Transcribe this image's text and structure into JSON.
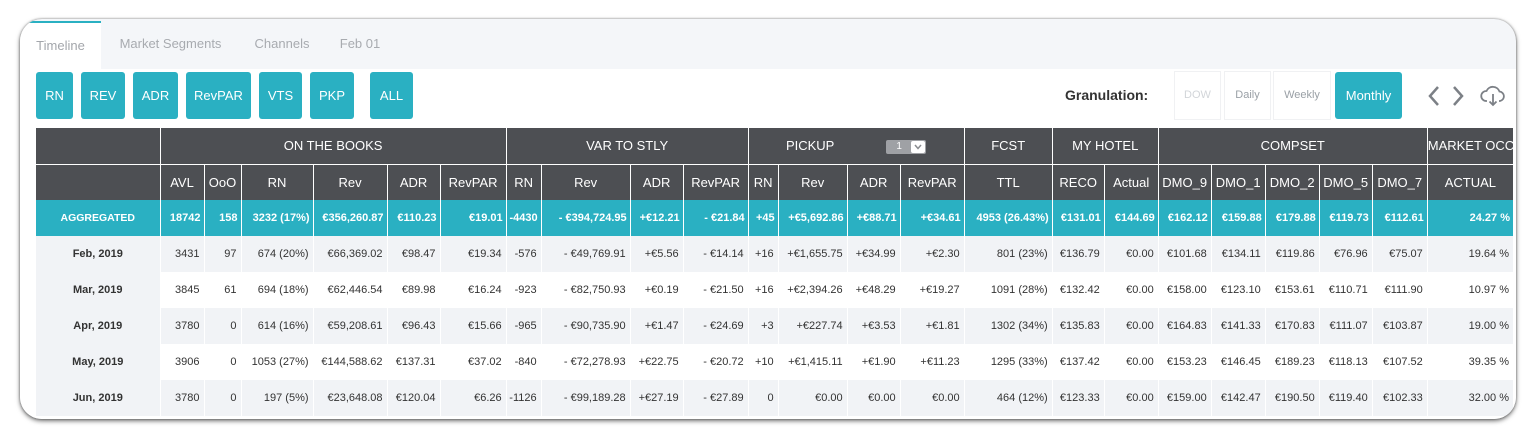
{
  "tabs": [
    {
      "label": "Timeline",
      "active": true
    },
    {
      "label": "Market Segments"
    },
    {
      "label": "Channels"
    },
    {
      "label": "Feb 01"
    }
  ],
  "metric_buttons": [
    "RN",
    "REV",
    "ADR",
    "RevPAR",
    "VTS",
    "PKP",
    "ALL"
  ],
  "granulation": {
    "label": "Granulation:",
    "options": [
      "DOW",
      "Daily",
      "Weekly",
      "Monthly"
    ],
    "selected": "Monthly",
    "disabled": [
      "DOW"
    ]
  },
  "icons": {
    "prev": "chevron-left-icon",
    "next": "chevron-right-icon",
    "download": "cloud-download-icon"
  },
  "colors": {
    "accent": "#2ab0c2",
    "header": "#4d4f53",
    "row_alt": "#f1f3f6"
  },
  "table": {
    "groups": [
      "ON THE BOOKS",
      "VAR TO STLY",
      "PICKUP",
      "FCST",
      "MY HOTEL",
      "COMPSET",
      "MARKET OCC"
    ],
    "pickup_select": "1",
    "columns": [
      "AVL",
      "OoO",
      "RN",
      "Rev",
      "ADR",
      "RevPAR",
      "RN",
      "Rev",
      "ADR",
      "RevPAR",
      "RN",
      "Rev",
      "ADR",
      "RevPAR",
      "TTL",
      "RECO",
      "Actual",
      "DMO_9",
      "DMO_1",
      "DMO_2",
      "DMO_5",
      "DMO_7",
      "ACTUAL"
    ],
    "aggregated": {
      "label": "AGGREGATED",
      "cells": [
        "18742",
        "158",
        "3232 (17%)",
        "€356,260.87",
        "€110.23",
        "€19.01",
        "-4430",
        "- €394,724.95",
        "+€12.21",
        "- €21.84",
        "+45",
        "+€5,692.86",
        "+€88.71",
        "+€34.61",
        "4953 (26.43%)",
        "€131.01",
        "€144.69",
        "€162.12",
        "€159.88",
        "€179.88",
        "€119.73",
        "€112.61",
        "24.27 %"
      ]
    },
    "rows": [
      {
        "label": "Feb, 2019",
        "cells": [
          "3431",
          "97",
          "674 (20%)",
          "€66,369.02",
          "€98.47",
          "€19.34",
          "-576",
          "- €49,769.91",
          "+€5.56",
          "- €14.14",
          "+16",
          "+€1,655.75",
          "+€34.99",
          "+€2.30",
          "801 (23%)",
          "€136.79",
          "€0.00",
          "€101.68",
          "€134.11",
          "€119.86",
          "€76.96",
          "€75.07",
          "19.64 %"
        ]
      },
      {
        "label": "Mar, 2019",
        "cells": [
          "3845",
          "61",
          "694 (18%)",
          "€62,446.54",
          "€89.98",
          "€16.24",
          "-923",
          "- €82,750.93",
          "+€0.19",
          "- €21.50",
          "+16",
          "+€2,394.26",
          "+€48.29",
          "+€19.27",
          "1091 (28%)",
          "€132.42",
          "€0.00",
          "€158.00",
          "€123.10",
          "€153.61",
          "€110.71",
          "€111.90",
          "10.97 %"
        ]
      },
      {
        "label": "Apr, 2019",
        "cells": [
          "3780",
          "0",
          "614 (16%)",
          "€59,208.61",
          "€96.43",
          "€15.66",
          "-965",
          "- €90,735.90",
          "+€1.47",
          "- €24.69",
          "+3",
          "+€227.74",
          "+€3.53",
          "+€1.81",
          "1302 (34%)",
          "€135.83",
          "€0.00",
          "€164.83",
          "€141.33",
          "€170.83",
          "€111.07",
          "€103.87",
          "19.00 %"
        ]
      },
      {
        "label": "May, 2019",
        "cells": [
          "3906",
          "0",
          "1053 (27%)",
          "€144,588.62",
          "€137.31",
          "€37.02",
          "-840",
          "- €72,278.93",
          "+€22.75",
          "- €20.72",
          "+10",
          "+€1,415.11",
          "+€1.90",
          "+€11.23",
          "1295 (33%)",
          "€137.42",
          "€0.00",
          "€153.23",
          "€146.45",
          "€189.23",
          "€118.13",
          "€107.52",
          "39.35 %"
        ]
      },
      {
        "label": "Jun, 2019",
        "cells": [
          "3780",
          "0",
          "197 (5%)",
          "€23,648.08",
          "€120.04",
          "€6.26",
          "-1126",
          "- €99,189.28",
          "+€27.19",
          "- €27.89",
          "0",
          "€0.00",
          "€0.00",
          "€0.00",
          "464 (12%)",
          "€123.33",
          "€0.00",
          "€159.00",
          "€142.47",
          "€190.50",
          "€119.40",
          "€102.33",
          "32.00 %"
        ]
      }
    ]
  }
}
